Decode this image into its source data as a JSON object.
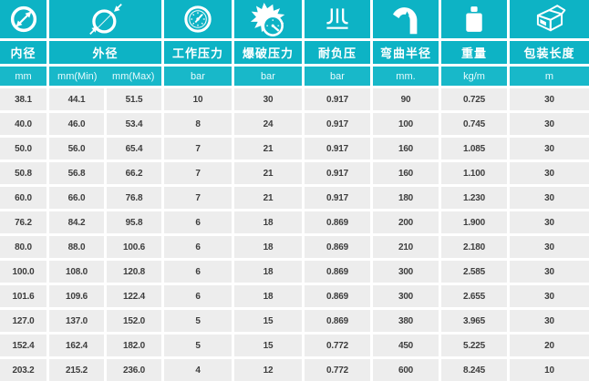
{
  "table": {
    "columns": [
      {
        "id": "inner-diameter",
        "label": "内径",
        "unit": "mm",
        "icon": "inner-diameter-icon"
      },
      {
        "id": "outer-diameter",
        "label": "外径",
        "units": [
          "mm(Min)",
          "mm(Max)"
        ],
        "icon": "outer-diameter-icon"
      },
      {
        "id": "working-pressure",
        "label": "工作压力",
        "unit": "bar",
        "icon": "pressure-gauge-icon"
      },
      {
        "id": "burst-pressure",
        "label": "爆破压力",
        "unit": "bar",
        "icon": "burst-gauge-icon"
      },
      {
        "id": "vacuum-resistance",
        "label": "耐负压",
        "unit": "bar",
        "icon": "vacuum-icon"
      },
      {
        "id": "bend-radius",
        "label": "弯曲半径",
        "unit": "mm.",
        "icon": "bend-radius-icon"
      },
      {
        "id": "weight",
        "label": "重量",
        "unit": "kg/m",
        "icon": "weight-icon"
      },
      {
        "id": "packing-length",
        "label": "包装长度",
        "unit": "m",
        "icon": "package-icon"
      }
    ],
    "rows": [
      [
        "38.1",
        "44.1",
        "51.5",
        "10",
        "30",
        "0.917",
        "90",
        "0.725",
        "30"
      ],
      [
        "40.0",
        "46.0",
        "53.4",
        "8",
        "24",
        "0.917",
        "100",
        "0.745",
        "30"
      ],
      [
        "50.0",
        "56.0",
        "65.4",
        "7",
        "21",
        "0.917",
        "160",
        "1.085",
        "30"
      ],
      [
        "50.8",
        "56.8",
        "66.2",
        "7",
        "21",
        "0.917",
        "160",
        "1.100",
        "30"
      ],
      [
        "60.0",
        "66.0",
        "76.8",
        "7",
        "21",
        "0.917",
        "180",
        "1.230",
        "30"
      ],
      [
        "76.2",
        "84.2",
        "95.8",
        "6",
        "18",
        "0.869",
        "200",
        "1.900",
        "30"
      ],
      [
        "80.0",
        "88.0",
        "100.6",
        "6",
        "18",
        "0.869",
        "210",
        "2.180",
        "30"
      ],
      [
        "100.0",
        "108.0",
        "120.8",
        "6",
        "18",
        "0.869",
        "300",
        "2.585",
        "30"
      ],
      [
        "101.6",
        "109.6",
        "122.4",
        "6",
        "18",
        "0.869",
        "300",
        "2.655",
        "30"
      ],
      [
        "127.0",
        "137.0",
        "152.0",
        "5",
        "15",
        "0.869",
        "380",
        "3.965",
        "30"
      ],
      [
        "152.4",
        "162.4",
        "182.0",
        "5",
        "15",
        "0.772",
        "450",
        "5.225",
        "20"
      ],
      [
        "203.2",
        "215.2",
        "236.0",
        "4",
        "12",
        "0.772",
        "600",
        "8.245",
        "10"
      ]
    ]
  },
  "colors": {
    "header_teal": "#0db3c5",
    "unit_row_teal": "#18b8c9",
    "row_bg": "#ededed",
    "cell_text": "#3d3d3d",
    "gap_white": "#ffffff"
  },
  "chart_data": {
    "type": "table",
    "title": "",
    "columns": [
      "内径 mm",
      "外径 mm(Min)",
      "外径 mm(Max)",
      "工作压力 bar",
      "爆破压力 bar",
      "耐负压 bar",
      "弯曲半径 mm.",
      "重量 kg/m",
      "包装长度 m"
    ],
    "rows": [
      [
        38.1,
        44.1,
        51.5,
        10,
        30,
        0.917,
        90,
        0.725,
        30
      ],
      [
        40.0,
        46.0,
        53.4,
        8,
        24,
        0.917,
        100,
        0.745,
        30
      ],
      [
        50.0,
        56.0,
        65.4,
        7,
        21,
        0.917,
        160,
        1.085,
        30
      ],
      [
        50.8,
        56.8,
        66.2,
        7,
        21,
        0.917,
        160,
        1.1,
        30
      ],
      [
        60.0,
        66.0,
        76.8,
        7,
        21,
        0.917,
        180,
        1.23,
        30
      ],
      [
        76.2,
        84.2,
        95.8,
        6,
        18,
        0.869,
        200,
        1.9,
        30
      ],
      [
        80.0,
        88.0,
        100.6,
        6,
        18,
        0.869,
        210,
        2.18,
        30
      ],
      [
        100.0,
        108.0,
        120.8,
        6,
        18,
        0.869,
        300,
        2.585,
        30
      ],
      [
        101.6,
        109.6,
        122.4,
        6,
        18,
        0.869,
        300,
        2.655,
        30
      ],
      [
        127.0,
        137.0,
        152.0,
        5,
        15,
        0.869,
        380,
        3.965,
        30
      ],
      [
        152.4,
        162.4,
        182.0,
        5,
        15,
        0.772,
        450,
        5.225,
        20
      ],
      [
        203.2,
        215.2,
        236.0,
        4,
        12,
        0.772,
        600,
        8.245,
        10
      ]
    ]
  }
}
